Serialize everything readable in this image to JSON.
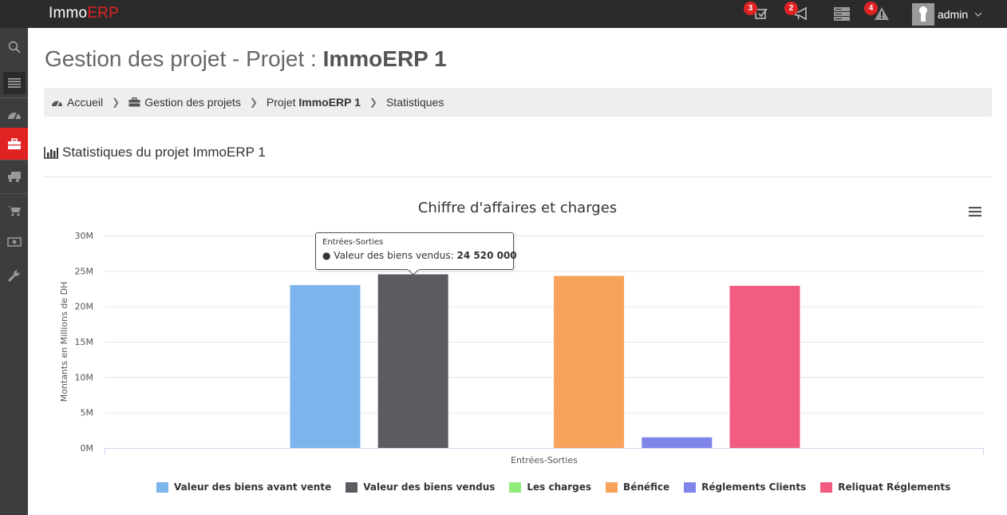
{
  "header": {
    "logo_prefix": "Immo",
    "logo_suffix": "ERP",
    "brand_color": "#e02222",
    "icons": [
      {
        "name": "tasks-icon",
        "badge": "3"
      },
      {
        "name": "megaphone-icon",
        "badge": "2"
      },
      {
        "name": "server-icon",
        "badge": ""
      },
      {
        "name": "warning-icon",
        "badge": "4"
      }
    ],
    "user": {
      "name": "admin"
    }
  },
  "sidebar": {
    "items": [
      "search-icon",
      "menu-icon",
      "dashboard-icon",
      "briefcase-icon",
      "truck-icon",
      "cart-icon",
      "money-icon",
      "wrench-icon"
    ],
    "active": "briefcase-icon"
  },
  "page": {
    "title_prefix": "Gestion des projet - Projet : ",
    "title_bold": "ImmoERP 1"
  },
  "breadcrumb": {
    "items": [
      {
        "label": "Accueil",
        "icon": "dashboard-icon"
      },
      {
        "label": "Gestion des projets",
        "icon": "briefcase-icon"
      },
      {
        "label_prefix": "Projet ",
        "label_bold": "ImmoERP 1"
      },
      {
        "label": "Statistiques"
      }
    ]
  },
  "section": {
    "title": "Statistiques du projet ImmoERP 1",
    "icon": "bar-chart-icon"
  },
  "chart_data": {
    "type": "bar",
    "title": "Chiffre d'affaires et charges",
    "ylabel": "Montants en Millions de DH",
    "xlabel": "",
    "categories": [
      "Entrées-Sorties"
    ],
    "ylim": [
      0,
      30000000
    ],
    "yticks": [
      "0M",
      "5M",
      "10M",
      "15M",
      "20M",
      "25M",
      "30M"
    ],
    "grid": true,
    "legend_position": "bottom",
    "series": [
      {
        "name": "Valeur des biens avant vente",
        "values": [
          23000000
        ],
        "color": "#7cb5ec"
      },
      {
        "name": "Valeur des biens vendus",
        "values": [
          24520000
        ],
        "color": "#5b5b62"
      },
      {
        "name": "Les charges",
        "values": [
          0
        ],
        "color": "#90ed7d"
      },
      {
        "name": "Bénéfice",
        "values": [
          24300000
        ],
        "color": "#f7a35c"
      },
      {
        "name": "Réglements Clients",
        "values": [
          1500000
        ],
        "color": "#8085e9"
      },
      {
        "name": "Reliquat Réglements",
        "values": [
          22900000
        ],
        "color": "#f15c80"
      }
    ]
  },
  "tooltip": {
    "header": "Entrées-Sorties",
    "label": "Valeur des biens vendus: ",
    "value": "24 520 000"
  }
}
